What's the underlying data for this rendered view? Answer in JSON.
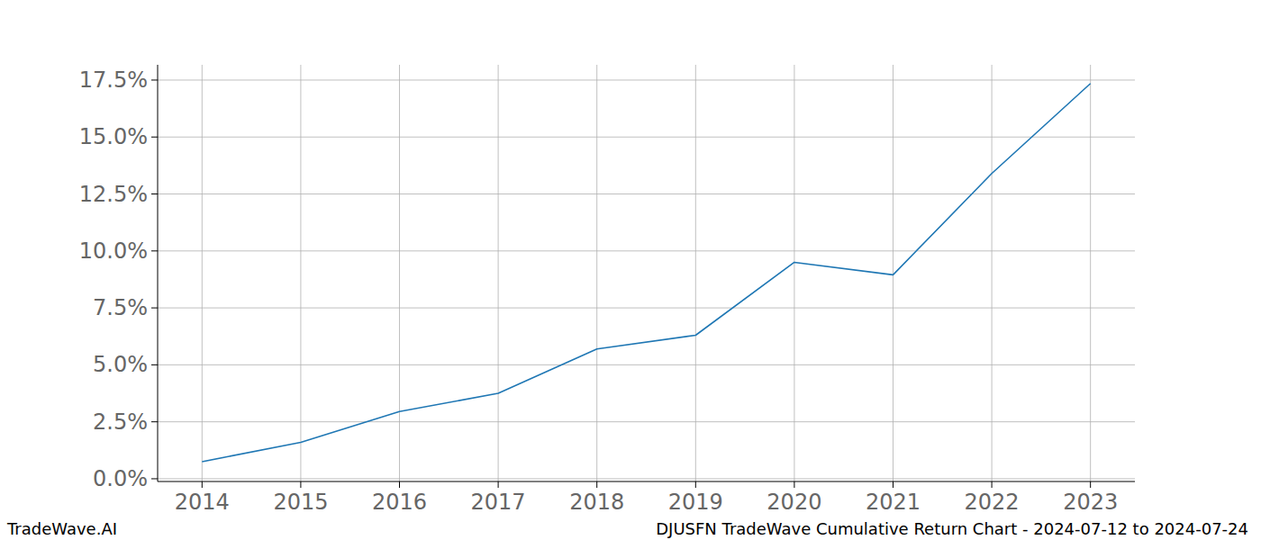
{
  "chart_data": {
    "type": "line",
    "title": "DJUSFN TradeWave Cumulative Return Chart - 2024-07-12 to 2024-07-24",
    "source": "TradeWave.AI",
    "x": [
      2014,
      2015,
      2016,
      2017,
      2018,
      2019,
      2020,
      2021,
      2022,
      2023
    ],
    "series": [
      {
        "name": "DJUSFN",
        "color": "#1f77b4",
        "values": [
          0.75,
          1.6,
          2.95,
          3.75,
          5.7,
          6.3,
          9.5,
          8.95,
          13.4,
          17.35
        ]
      }
    ],
    "xlim": [
      2013.55,
      2023.45
    ],
    "xticks": [
      2014,
      2015,
      2016,
      2017,
      2018,
      2019,
      2020,
      2021,
      2022,
      2023
    ],
    "ylim": [
      -0.12,
      18.17
    ],
    "yticks": [
      {
        "value": 0,
        "label": "0.0%"
      },
      {
        "value": 2.5,
        "label": "2.5%"
      },
      {
        "value": 5,
        "label": "5.0%"
      },
      {
        "value": 7.5,
        "label": "7.5%"
      },
      {
        "value": 10,
        "label": "10.0%"
      },
      {
        "value": 12.5,
        "label": "12.5%"
      },
      {
        "value": 15,
        "label": "15.0%"
      },
      {
        "value": 17.5,
        "label": "17.5%"
      }
    ],
    "grid": true
  }
}
